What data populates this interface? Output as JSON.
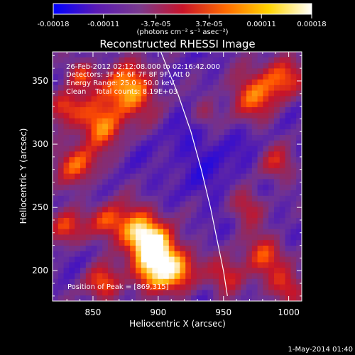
{
  "chart_data": {
    "type": "heatmap",
    "title": "Reconstructed RHESSI Image",
    "xlabel": "Heliocentric X (arcsec)",
    "ylabel": "Heliocentric Y (arcsec)",
    "xlim": [
      819,
      1010
    ],
    "ylim": [
      176,
      373
    ],
    "x_ticks": [
      850,
      900,
      950,
      1000
    ],
    "y_ticks": [
      200,
      250,
      300,
      350
    ],
    "colorbar": {
      "min": -0.00018,
      "max": 0.00018,
      "tick_values": [
        -0.00018,
        -0.00011,
        -3.7e-05,
        3.7e-05,
        0.00011,
        0.00018
      ],
      "tick_labels": [
        "-0.00018",
        "-0.00011",
        "-3.7e-05",
        "3.7e-05",
        "0.00011",
        "0.00018"
      ],
      "unit_label": "(photons cm⁻² s⁻¹ asec⁻²)",
      "colors": [
        "#0000ff",
        "#5a1ab4",
        "#7a3a8e",
        "#c8142a",
        "#ff6a00",
        "#ffd400",
        "#ffffff"
      ]
    },
    "annotations": [
      "26-Feb-2012 02:12:08.000 to 02:16:42.000",
      "Detectors: 3F 5F 6F 7F 8F 9F, Att 0",
      "Energy Range: 25.0 - 50.0 keV",
      "Clean    Total counts: 8.19E+03"
    ],
    "peak_label": "Position of Peak = [869,315]",
    "peak_position": [
      869,
      315
    ],
    "limb_curve": [
      [
        902,
        373
      ],
      [
        915,
        340
      ],
      [
        925,
        310
      ],
      [
        933,
        280
      ],
      [
        940,
        250
      ],
      [
        945,
        225
      ],
      [
        950,
        200
      ],
      [
        953,
        180
      ]
    ],
    "timestamp": "1-May-2014 01:40"
  }
}
